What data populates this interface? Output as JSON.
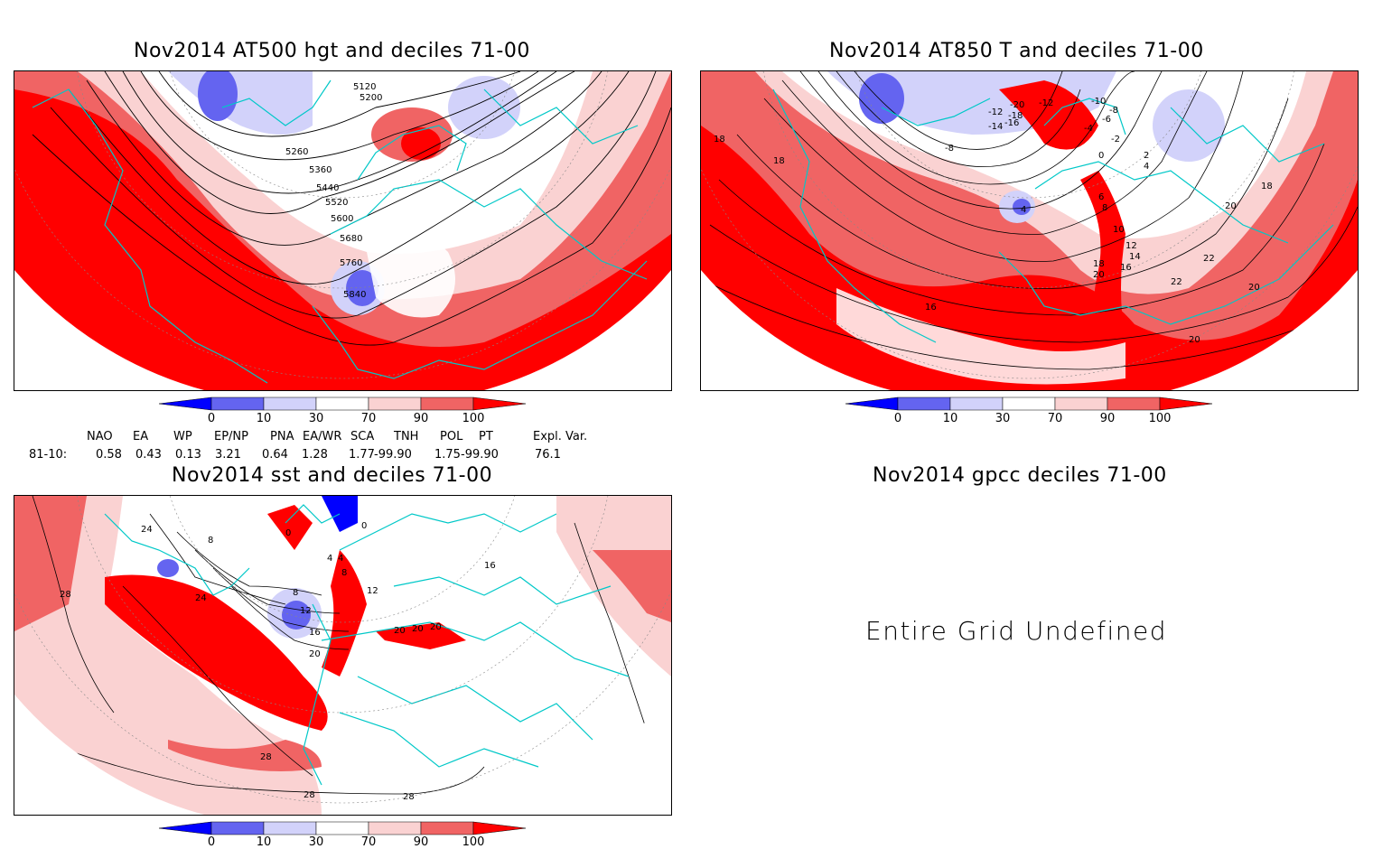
{
  "panels": {
    "p1": {
      "title": "Nov2014 AT500 hgt and deciles 71-00",
      "contour_labels": [
        "5120",
        "5200",
        "5260",
        "5360",
        "5440",
        "5520",
        "5600",
        "5680",
        "5760",
        "5840"
      ]
    },
    "p2": {
      "title": "Nov2014 AT850 T and deciles 71-00",
      "contour_labels": [
        "-20",
        "-18",
        "-16",
        "-14",
        "-12",
        "-12",
        "-10",
        "-8",
        "-8",
        "-6",
        "-4",
        "-2",
        "0",
        "2",
        "4",
        "4",
        "6",
        "8",
        "10",
        "12",
        "14",
        "16",
        "16",
        "18",
        "18",
        "18",
        "18",
        "20",
        "20",
        "20",
        "20",
        "22",
        "22"
      ]
    },
    "p3": {
      "title": "Nov2014 sst and deciles 71-00",
      "contour_labels": [
        "24",
        "24",
        "28",
        "28",
        "28",
        "28",
        "8",
        "0",
        "0",
        "4",
        "4",
        "8",
        "8",
        "12",
        "12",
        "16",
        "20",
        "20",
        "20",
        "20",
        "16"
      ]
    },
    "p4": {
      "title": "Nov2014 gpcc deciles 71-00",
      "message": "Entire Grid Undefined"
    }
  },
  "colorbar": {
    "ticks": [
      "0",
      "10",
      "30",
      "70",
      "90",
      "100"
    ],
    "colors": [
      "#0000ff",
      "#6464f0",
      "#d2d2fa",
      "#ffffff",
      "#fad2d2",
      "#f06464",
      "#ff0000"
    ]
  },
  "indices": {
    "row_label": "81-10:",
    "names": [
      "NAO",
      "EA",
      "WP",
      "EP/NP",
      "PNA",
      "EA/WR",
      "SCA",
      "TNH",
      "POL",
      "PT",
      "Expl. Var."
    ],
    "values": [
      "0.58",
      "0.43",
      "0.13",
      "3.21",
      "0.64",
      "1.28",
      "1.77",
      "-99.90",
      "1.75",
      "-99.90",
      "76.1"
    ]
  },
  "map_colors": {
    "coast": "#00c8c8",
    "contour": "#000000"
  }
}
